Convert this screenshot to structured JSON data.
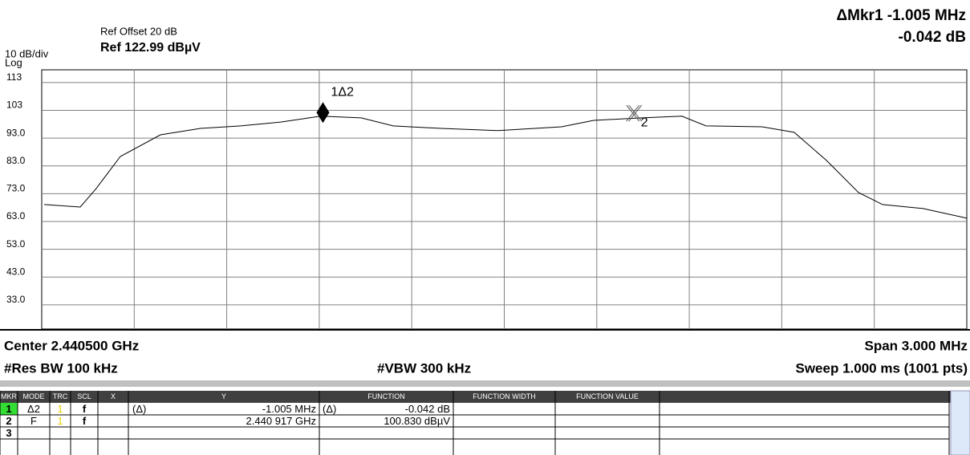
{
  "header": {
    "scale": "10 dB/div",
    "scale_type": "Log",
    "ref_offset": "Ref Offset 20 dB",
    "ref_level": "Ref 122.99 dBµV",
    "marker_readout": "ΔMkr1 -1.005 MHz",
    "marker_delta": "-0.042 dB"
  },
  "chart_data": {
    "type": "line",
    "color": "#000000",
    "grid": true,
    "divisions": 10,
    "xlim": [
      2.439,
      2.442
    ],
    "ylim": [
      24.3,
      117.6
    ],
    "yticks": [
      113,
      103,
      {
        "value": 93,
        "label": "93.0"
      },
      {
        "value": 83,
        "label": "83.0"
      },
      {
        "value": 73,
        "label": "73.0"
      },
      {
        "value": 63,
        "label": "63.0"
      },
      {
        "value": 53,
        "label": "53.0"
      },
      {
        "value": 43,
        "label": "43.0"
      },
      {
        "value": 33,
        "label": "33.0"
      }
    ],
    "x": [
      2.439008,
      2.439125,
      2.439177,
      2.439255,
      2.439385,
      2.439515,
      2.439645,
      2.439775,
      2.439905,
      2.440036,
      2.44014,
      2.440296,
      2.440478,
      2.440686,
      2.44079,
      2.440946,
      2.441076,
      2.441154,
      2.441336,
      2.44144,
      2.441545,
      2.441649,
      2.441727,
      2.441857,
      2.442
    ],
    "values": [
      69.1,
      68.2,
      74.9,
      86.4,
      94.2,
      96.5,
      97.4,
      98.8,
      100.9,
      100.3,
      97.4,
      96.5,
      95.7,
      97.1,
      99.4,
      100.3,
      100.9,
      97.4,
      97.1,
      95.1,
      85,
      73.4,
      69.1,
      67.7,
      64.2
    ],
    "markers": [
      {
        "label": "1Δ2",
        "x": 2.439912,
        "y": 100.788
      },
      {
        "label": "2",
        "x": 2.440917,
        "y": 100.83
      }
    ]
  },
  "footer": {
    "center": "Center 2.440500 GHz",
    "span": "Span 3.000 MHz",
    "rbw": "#Res BW 100 kHz",
    "vbw": "#VBW 300 kHz",
    "sweep": "Sweep  1.000 ms (1001 pts)"
  },
  "table": {
    "columns": [
      "MKR",
      "MODE",
      "TRC",
      "SCL",
      "X",
      "Y",
      "FUNCTION",
      "FUNCTION WIDTH",
      "FUNCTION VALUE"
    ],
    "rows": [
      {
        "mkr": "1",
        "mode": "Δ2",
        "trc": "1",
        "scl": "f",
        "x_prefix": "(Δ)",
        "x": "-1.005 MHz",
        "y_prefix": "(Δ)",
        "y": "-0.042 dB"
      },
      {
        "mkr": "2",
        "mode": "F",
        "trc": "1",
        "scl": "f",
        "x": "2.440 917 GHz",
        "y": "100.830 dBµV"
      },
      {
        "mkr": "3"
      }
    ]
  }
}
